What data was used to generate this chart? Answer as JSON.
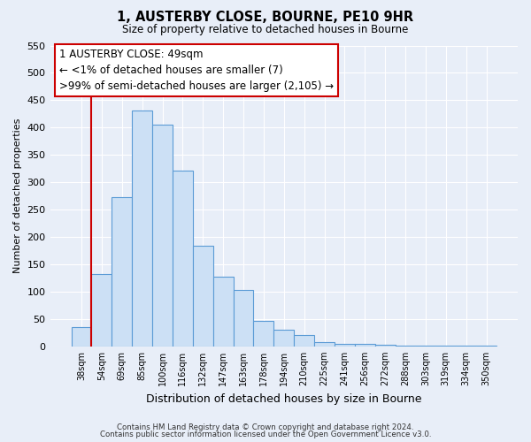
{
  "title": "1, AUSTERBY CLOSE, BOURNE, PE10 9HR",
  "subtitle": "Size of property relative to detached houses in Bourne",
  "xlabel": "Distribution of detached houses by size in Bourne",
  "ylabel": "Number of detached properties",
  "bar_values": [
    35,
    133,
    273,
    432,
    405,
    322,
    184,
    127,
    103,
    46,
    30,
    20,
    8,
    5,
    4,
    3,
    2,
    2,
    1,
    1,
    1
  ],
  "categories": [
    "38sqm",
    "54sqm",
    "69sqm",
    "85sqm",
    "100sqm",
    "116sqm",
    "132sqm",
    "147sqm",
    "163sqm",
    "178sqm",
    "194sqm",
    "210sqm",
    "225sqm",
    "241sqm",
    "256sqm",
    "272sqm",
    "288sqm",
    "303sqm",
    "319sqm",
    "334sqm",
    "350sqm"
  ],
  "bar_color": "#cce0f5",
  "bar_edge_color": "#5b9bd5",
  "highlight_line_color": "#cc0000",
  "ylim": [
    0,
    550
  ],
  "yticks": [
    0,
    50,
    100,
    150,
    200,
    250,
    300,
    350,
    400,
    450,
    500,
    550
  ],
  "annotation_title": "1 AUSTERBY CLOSE: 49sqm",
  "annotation_line1": "← <1% of detached houses are smaller (7)",
  "annotation_line2": ">99% of semi-detached houses are larger (2,105) →",
  "footer1": "Contains HM Land Registry data © Crown copyright and database right 2024.",
  "footer2": "Contains public sector information licensed under the Open Government Licence v3.0.",
  "background_color": "#e8eef8",
  "grid_color": "#ffffff"
}
